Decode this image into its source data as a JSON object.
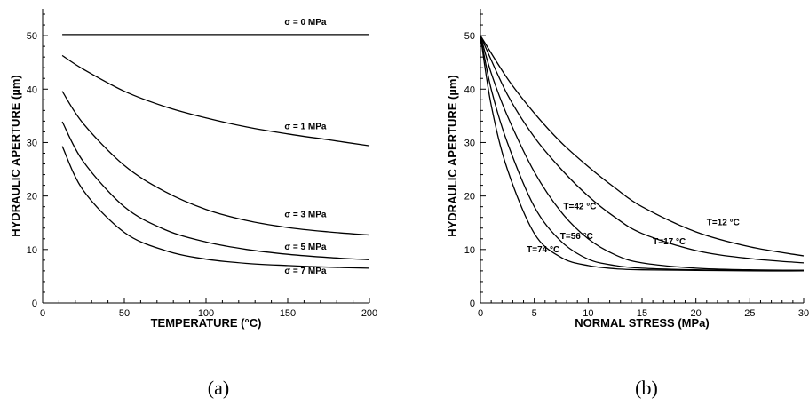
{
  "chart_data": [
    {
      "type": "line",
      "caption": "(a)",
      "xlabel": "TEMPERATURE (°C)",
      "ylabel": "HYDRAULIC APERTURE (µm)",
      "xlim": [
        0,
        200
      ],
      "ylim": [
        0,
        55
      ],
      "xticks": [
        0,
        50,
        100,
        150,
        200
      ],
      "yticks": [
        0,
        10,
        20,
        30,
        40,
        50
      ],
      "grid": false,
      "series": [
        {
          "name": "σ = 0 MPa",
          "x": [
            12,
            50,
            100,
            150,
            200
          ],
          "y": [
            50.2,
            50.2,
            50.2,
            50.2,
            50.2
          ],
          "label_at": [
            148,
            52
          ]
        },
        {
          "name": "σ = 1 MPa",
          "x": [
            12,
            25,
            50,
            75,
            100,
            125,
            150,
            175,
            200
          ],
          "y": [
            46.3,
            43.7,
            39.6,
            36.7,
            34.6,
            32.9,
            31.6,
            30.5,
            29.4
          ],
          "label_at": [
            148,
            32.5
          ]
        },
        {
          "name": "σ = 3 MPa",
          "x": [
            12,
            25,
            50,
            75,
            100,
            125,
            150,
            175,
            200
          ],
          "y": [
            39.6,
            33.5,
            25.7,
            20.8,
            17.5,
            15.4,
            14.1,
            13.3,
            12.7
          ],
          "label_at": [
            148,
            16
          ]
        },
        {
          "name": "σ = 5 MPa",
          "x": [
            12,
            25,
            50,
            75,
            100,
            125,
            150,
            175,
            200
          ],
          "y": [
            33.9,
            26.4,
            18.0,
            13.7,
            11.4,
            10.0,
            9.1,
            8.5,
            8.1
          ],
          "label_at": [
            148,
            10
          ]
        },
        {
          "name": "σ = 7 MPa",
          "x": [
            12,
            25,
            50,
            75,
            100,
            125,
            150,
            175,
            200
          ],
          "y": [
            29.3,
            21.0,
            13.2,
            9.8,
            8.2,
            7.4,
            7.0,
            6.7,
            6.5
          ],
          "label_at": [
            148,
            5.5
          ]
        }
      ]
    },
    {
      "type": "line",
      "caption": "(b)",
      "xlabel": "NORMAL STRESS (MPa)",
      "ylabel": "HYDRAULIC APERTURE (µm)",
      "xlim": [
        0,
        30
      ],
      "ylim": [
        0,
        55
      ],
      "xticks": [
        0,
        5,
        10,
        15,
        20,
        25,
        30
      ],
      "yticks": [
        0,
        10,
        20,
        30,
        40,
        50
      ],
      "grid": false,
      "series": [
        {
          "name": "T=12 °C",
          "x": [
            0,
            2.5,
            5,
            7.5,
            10,
            12.5,
            15,
            20,
            25,
            30
          ],
          "y": [
            50,
            42,
            35.5,
            30.0,
            25.5,
            21.5,
            18.0,
            13.3,
            10.5,
            8.8
          ],
          "label_at": [
            21,
            14.5
          ]
        },
        {
          "name": "T=17 °C",
          "x": [
            0,
            2.5,
            5,
            7.5,
            10,
            12.5,
            15,
            20,
            25,
            30
          ],
          "y": [
            50,
            39,
            31.0,
            25.0,
            20.0,
            16.0,
            13.0,
            9.8,
            8.3,
            7.5
          ],
          "label_at": [
            16,
            11
          ]
        },
        {
          "name": "T=42 °C",
          "x": [
            0,
            1,
            2.5,
            5,
            7.5,
            10,
            12.5,
            15,
            20,
            25,
            30
          ],
          "y": [
            50,
            43,
            35.0,
            24.5,
            17.0,
            12.0,
            9.0,
            7.5,
            6.5,
            6.2,
            6.1
          ],
          "label_at": [
            7.7,
            17.5
          ]
        },
        {
          "name": "T=56 °C",
          "x": [
            0,
            1,
            2.5,
            5,
            7.5,
            10,
            12.5,
            15,
            20,
            25,
            30
          ],
          "y": [
            50,
            40,
            30.0,
            18.0,
            11.5,
            8.2,
            7.0,
            6.5,
            6.2,
            6.1,
            6.1
          ],
          "label_at": [
            7.4,
            12
          ]
        },
        {
          "name": "T=74 °C",
          "x": [
            0,
            1,
            2.5,
            5,
            7.5,
            10,
            12.5,
            15,
            20,
            25,
            30
          ],
          "y": [
            50,
            37,
            25.0,
            13.0,
            8.5,
            7.0,
            6.4,
            6.2,
            6.1,
            6.0,
            6.0
          ],
          "label_at": [
            4.3,
            9.5
          ]
        }
      ]
    }
  ]
}
